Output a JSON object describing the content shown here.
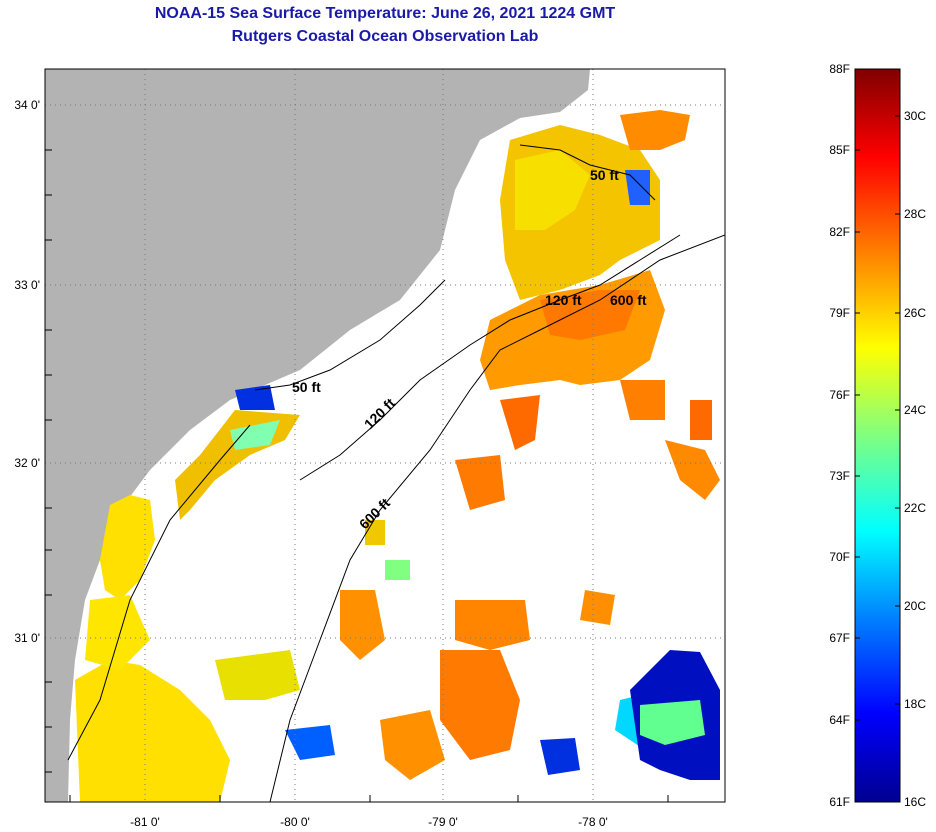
{
  "title": {
    "line1": "NOAA-15 Sea Surface Temperature:  June 26, 2021 1224 GMT",
    "line2": "Rutgers Coastal Ocean Observation Lab"
  },
  "map": {
    "lon_ticks": [
      "-81 0'",
      "-80 0'",
      "-79 0'",
      "-78 0'"
    ],
    "lat_ticks": [
      "34 0'",
      "33 0'",
      "32 0'",
      "31 0'"
    ],
    "contours": [
      "50 ft",
      "120 ft",
      "600 ft",
      "50 ft",
      "120 ft",
      "600 ft"
    ],
    "land_color": "#b3b3b3",
    "no_data_color": "#ffffff"
  },
  "colorbar": {
    "fahrenheit": [
      "88F",
      "85F",
      "82F",
      "79F",
      "76F",
      "73F",
      "70F",
      "67F",
      "64F",
      "61F"
    ],
    "celsius": [
      "30C",
      "28C",
      "26C",
      "24C",
      "22C",
      "20C",
      "18C",
      "16C"
    ]
  }
}
